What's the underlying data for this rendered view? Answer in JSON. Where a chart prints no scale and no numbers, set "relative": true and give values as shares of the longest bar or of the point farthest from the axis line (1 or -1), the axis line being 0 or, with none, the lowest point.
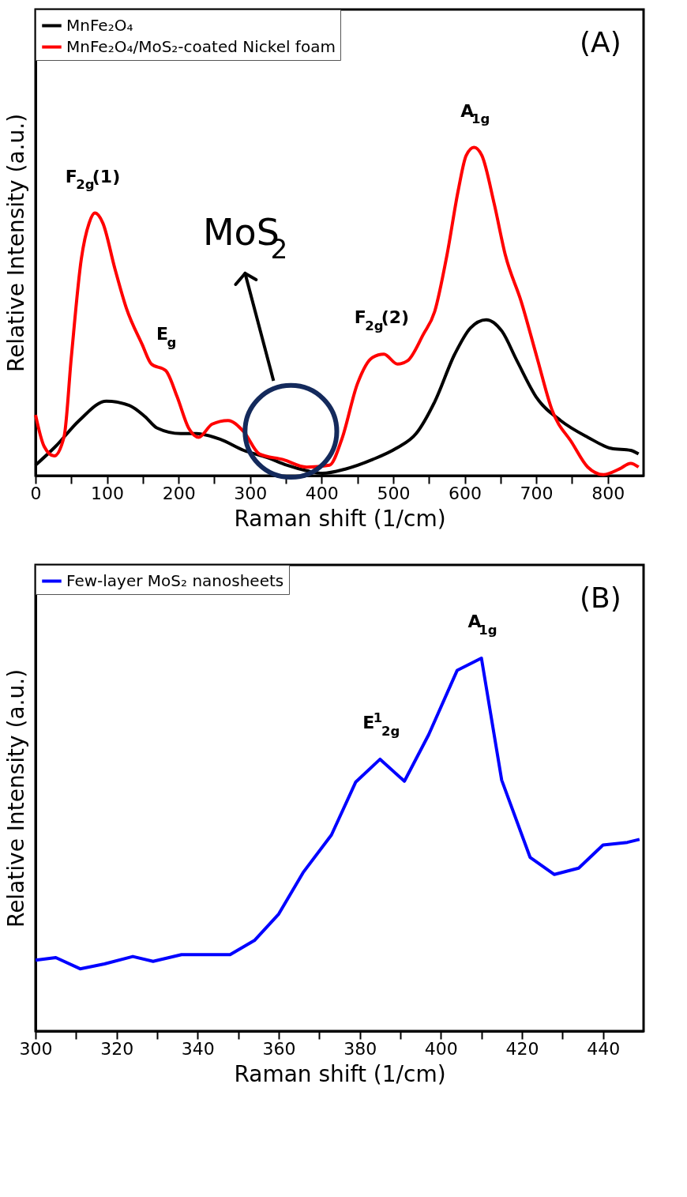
{
  "chart_data": [
    {
      "type": "line",
      "relative": true,
      "xlabel": "Raman shift (1/cm)",
      "ylabel": "Relative Intensity (a.u.)",
      "xlim": [
        0,
        850
      ],
      "xticks": [
        0,
        {
          "value": 50,
          "label": null
        },
        100,
        {
          "value": 150,
          "label": null
        },
        200,
        {
          "value": 250,
          "label": null
        },
        300,
        {
          "value": 350,
          "label": null
        },
        400,
        {
          "value": 450,
          "label": null
        },
        500,
        {
          "value": 550,
          "label": null
        },
        600,
        {
          "value": 650,
          "label": null
        },
        700,
        {
          "value": 750,
          "label": null
        },
        800
      ],
      "grid": false,
      "legend": "top left",
      "marker": "none",
      "line_style": "solid",
      "series": [
        {
          "name": "MnFe₂O₄",
          "color": "#000000",
          "x": [
            0,
            28,
            61,
            99,
            131,
            153,
            170,
            203,
            225,
            258,
            291,
            324,
            351,
            379,
            401,
            433,
            471,
            504,
            532,
            558,
            586,
            608,
            630,
            652,
            673,
            701,
            734,
            772,
            805,
            832,
            843
          ],
          "values": [
            0.032,
            0.089,
            0.168,
            0.227,
            0.214,
            0.18,
            0.145,
            0.128,
            0.128,
            0.111,
            0.077,
            0.055,
            0.032,
            0.015,
            0.007,
            0.02,
            0.049,
            0.083,
            0.128,
            0.225,
            0.37,
            0.45,
            0.475,
            0.44,
            0.35,
            0.236,
            0.168,
            0.117,
            0.083,
            0.077,
            0.066
          ]
        },
        {
          "name": "MnFe₂O₄/MoS₂-coated Nickel foam",
          "color": "#ff0000",
          "x": [
            0,
            12,
            26,
            40,
            50,
            64,
            75,
            83,
            94,
            111,
            127,
            149,
            162,
            182,
            198,
            214,
            228,
            247,
            269,
            291,
            313,
            346,
            379,
            411,
            428,
            450,
            471,
            487,
            506,
            520,
            542,
            558,
            575,
            591,
            602,
            613,
            624,
            641,
            657,
            679,
            701,
            722,
            750,
            772,
            794,
            816,
            832,
            843
          ],
          "values": [
            0.185,
            0.089,
            0.06,
            0.12,
            0.36,
            0.66,
            0.77,
            0.8,
            0.77,
            0.63,
            0.51,
            0.4,
            0.34,
            0.32,
            0.24,
            0.145,
            0.117,
            0.157,
            0.168,
            0.134,
            0.066,
            0.049,
            0.026,
            0.032,
            0.11,
            0.28,
            0.36,
            0.37,
            0.34,
            0.35,
            0.43,
            0.5,
            0.67,
            0.87,
            0.975,
            1,
            0.975,
            0.83,
            0.67,
            0.53,
            0.36,
            0.2,
            0.1,
            0.026,
            0.003,
            0.02,
            0.0375,
            0.026
          ]
        }
      ],
      "annotations": [
        {
          "text": "F$_{2g}$(1)",
          "x": 83,
          "y": 0.8
        },
        {
          "text": "E$_{g}$",
          "x": 182,
          "y": 0.32
        },
        {
          "text": "F$_{2g}$(2)",
          "x": 487,
          "y": 0.37
        },
        {
          "text": "A$_{1g}$",
          "x": 613,
          "y": 1
        },
        "MoS$_{2}$",
        "(A)"
      ]
    },
    {
      "type": "line",
      "relative": true,
      "xlabel": "Raman shift (1/cm)",
      "ylabel": "Relative Intensity (a.u.)",
      "xlim": [
        300,
        450
      ],
      "xticks": [
        300,
        {
          "value": 310,
          "label": null
        },
        320,
        {
          "value": 330,
          "label": null
        },
        340,
        {
          "value": 350,
          "label": null
        },
        360,
        {
          "value": 370,
          "label": null
        },
        380,
        {
          "value": 390,
          "label": null
        },
        400,
        {
          "value": 410,
          "label": null
        },
        420,
        {
          "value": 430,
          "label": null
        },
        440
      ],
      "grid": false,
      "legend": "top left",
      "marker": "none",
      "line_style": "solid",
      "series": [
        {
          "name": "Few-layer MoS₂ nanosheets",
          "color": "#0000ff",
          "x": [
            300,
            305,
            311,
            317,
            324,
            329,
            336,
            348,
            354,
            360,
            366,
            373,
            379,
            385,
            391,
            397,
            404,
            410,
            415,
            422,
            428,
            434,
            440,
            446,
            449
          ],
          "values": [
            0.19,
            0.197,
            0.167,
            0.18,
            0.2,
            0.187,
            0.205,
            0.205,
            0.243,
            0.314,
            0.425,
            0.526,
            0.668,
            0.729,
            0.67,
            0.795,
            0.967,
            1,
            0.673,
            0.466,
            0.42,
            0.437,
            0.499,
            0.506,
            0.514
          ]
        }
      ],
      "annotations": [
        {
          "text": "E$^{1}$$_{2g}$",
          "x": 385,
          "y": 0.729
        },
        {
          "text": "A$_{1g}$",
          "x": 410,
          "y": 1
        },
        "(B)"
      ]
    }
  ]
}
